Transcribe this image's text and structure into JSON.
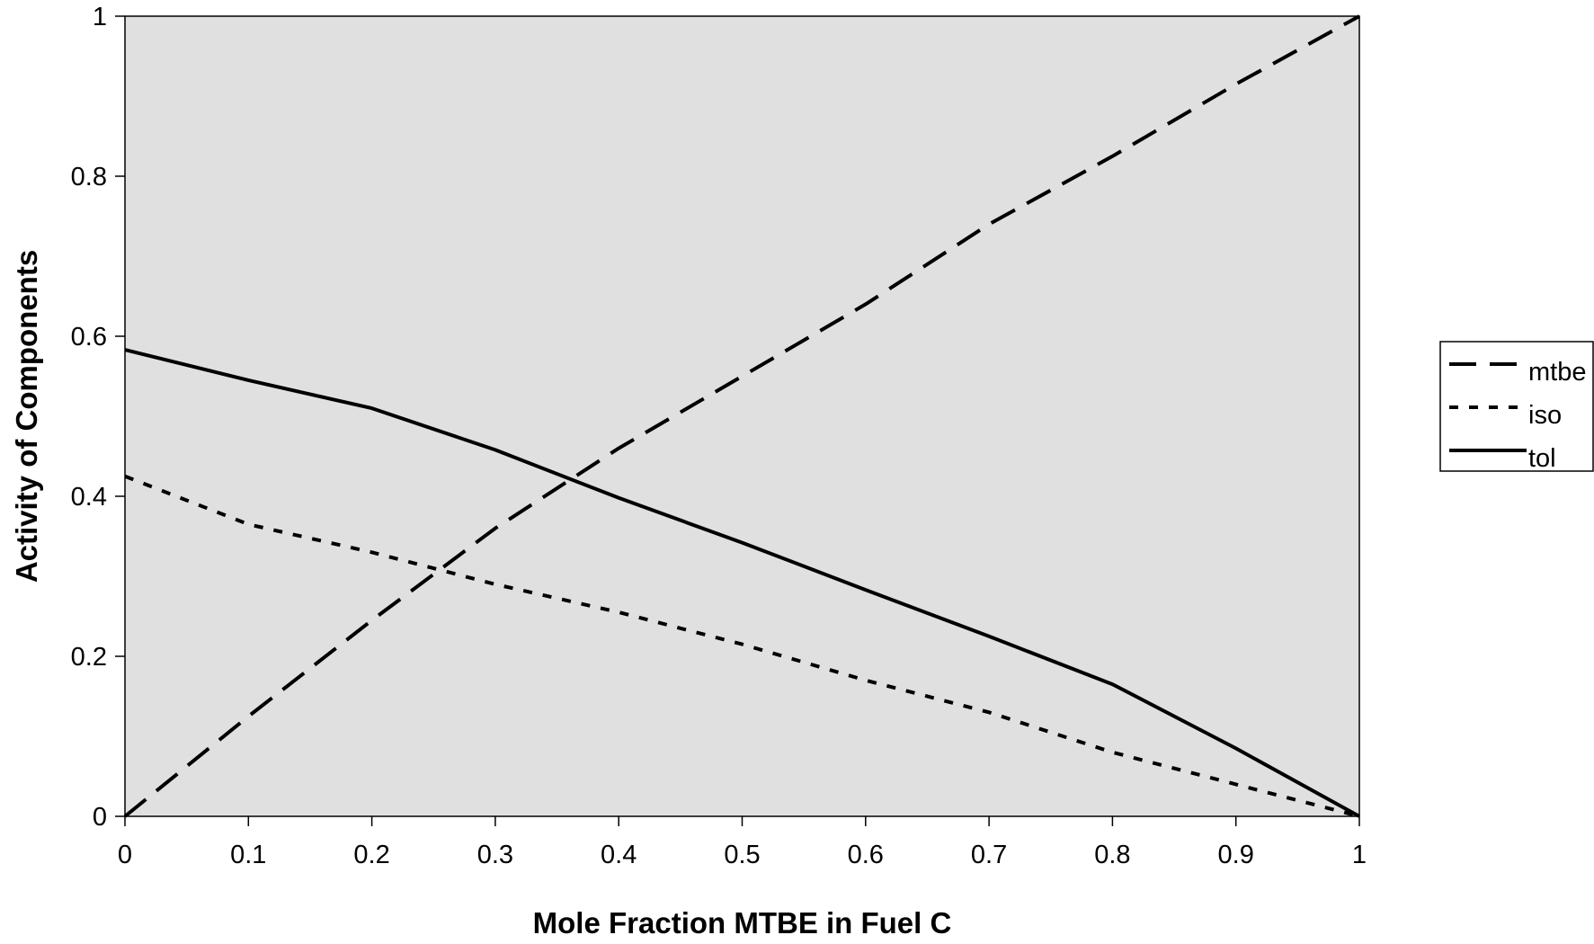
{
  "chart_data": {
    "type": "line",
    "title": "",
    "xlabel": "Mole Fraction MTBE in Fuel C",
    "ylabel": "Activity of Components",
    "xlim": [
      0,
      1
    ],
    "ylim": [
      0,
      1
    ],
    "x_ticks": [
      0,
      0.1,
      0.2,
      0.3,
      0.4,
      0.5,
      0.6,
      0.7,
      0.8,
      0.9,
      1
    ],
    "x_tick_labels": [
      "0",
      "0.1",
      "0.2",
      "0.3",
      "0.4",
      "0.5",
      "0.6",
      "0.7",
      "0.8",
      "0.9",
      "1"
    ],
    "y_ticks": [
      0,
      0.2,
      0.4,
      0.6,
      0.8,
      1
    ],
    "y_tick_labels": [
      "0",
      "0.2",
      "0.4",
      "0.6",
      "0.8",
      "1"
    ],
    "grid": false,
    "legend_position": "right",
    "plot_background": "#e0e0e0",
    "line_color": "#000000",
    "series": [
      {
        "name": "mtbe",
        "style": "dashed",
        "x": [
          0,
          0.1,
          0.2,
          0.3,
          0.4,
          0.5,
          0.6,
          0.7,
          0.8,
          0.9,
          1.0
        ],
        "y": [
          0,
          0.125,
          0.245,
          0.36,
          0.46,
          0.55,
          0.64,
          0.74,
          0.825,
          0.915,
          1.0
        ]
      },
      {
        "name": "iso",
        "style": "dotted",
        "x": [
          0,
          0.1,
          0.2,
          0.3,
          0.4,
          0.5,
          0.6,
          0.7,
          0.8,
          0.9,
          1.0
        ],
        "y": [
          0.425,
          0.365,
          0.33,
          0.29,
          0.255,
          0.215,
          0.17,
          0.13,
          0.08,
          0.04,
          0
        ]
      },
      {
        "name": "tol",
        "style": "solid",
        "x": [
          0,
          0.1,
          0.2,
          0.3,
          0.4,
          0.5,
          0.6,
          0.7,
          0.8,
          0.9,
          1.0
        ],
        "y": [
          0.583,
          0.545,
          0.51,
          0.458,
          0.398,
          0.342,
          0.283,
          0.225,
          0.165,
          0.085,
          0
        ]
      }
    ]
  }
}
